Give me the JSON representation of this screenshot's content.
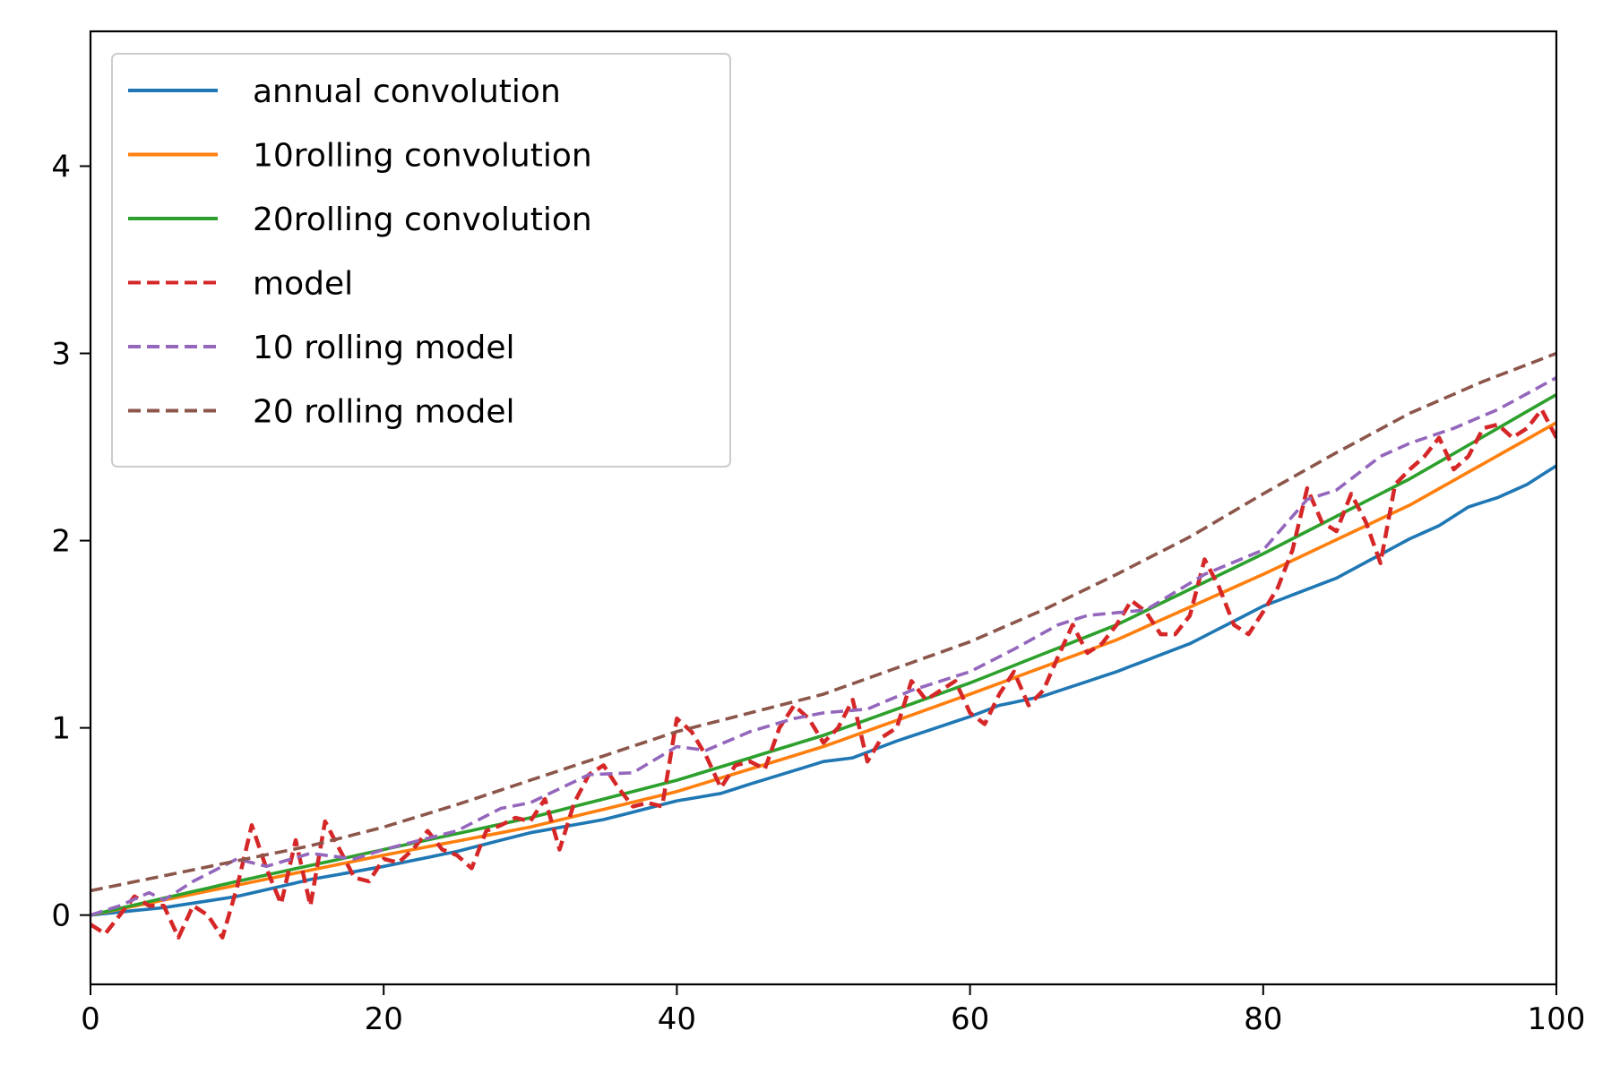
{
  "chart_data": {
    "type": "line",
    "title": "",
    "xlabel": "",
    "ylabel": "",
    "xlim": [
      0,
      100
    ],
    "ylim": [
      -0.37,
      4.72
    ],
    "xticks": [
      0,
      20,
      40,
      60,
      80,
      100
    ],
    "yticks": [
      0,
      1,
      2,
      3,
      4
    ],
    "grid": false,
    "legend_position": "upper-left",
    "x_step": 1,
    "series": [
      {
        "name": "annual convolution",
        "color": "#1f77b4",
        "style": "solid",
        "knots": [
          [
            0,
            0.0
          ],
          [
            5,
            0.04
          ],
          [
            10,
            0.1
          ],
          [
            15,
            0.19
          ],
          [
            20,
            0.26
          ],
          [
            25,
            0.34
          ],
          [
            30,
            0.44
          ],
          [
            35,
            0.51
          ],
          [
            40,
            0.61
          ],
          [
            43,
            0.65
          ],
          [
            45,
            0.7
          ],
          [
            50,
            0.82
          ],
          [
            52,
            0.84
          ],
          [
            55,
            0.93
          ],
          [
            60,
            1.06
          ],
          [
            62,
            1.12
          ],
          [
            65,
            1.17
          ],
          [
            70,
            1.3
          ],
          [
            75,
            1.45
          ],
          [
            80,
            1.65
          ],
          [
            85,
            1.8
          ],
          [
            90,
            2.01
          ],
          [
            92,
            2.08
          ],
          [
            94,
            2.18
          ],
          [
            96,
            2.23
          ],
          [
            98,
            2.3
          ],
          [
            100,
            2.4
          ]
        ]
      },
      {
        "name": "10rolling convolution",
        "color": "#ff7f0e",
        "style": "solid",
        "knots": [
          [
            0,
            0.0
          ],
          [
            10,
            0.16
          ],
          [
            20,
            0.32
          ],
          [
            30,
            0.47
          ],
          [
            40,
            0.66
          ],
          [
            50,
            0.9
          ],
          [
            60,
            1.18
          ],
          [
            70,
            1.47
          ],
          [
            80,
            1.82
          ],
          [
            90,
            2.19
          ],
          [
            100,
            2.63
          ]
        ]
      },
      {
        "name": "20rolling convolution",
        "color": "#2ca02c",
        "style": "solid",
        "knots": [
          [
            0,
            0.0
          ],
          [
            10,
            0.18
          ],
          [
            20,
            0.35
          ],
          [
            30,
            0.52
          ],
          [
            40,
            0.72
          ],
          [
            50,
            0.96
          ],
          [
            60,
            1.24
          ],
          [
            70,
            1.55
          ],
          [
            80,
            1.93
          ],
          [
            90,
            2.33
          ],
          [
            100,
            2.78
          ]
        ]
      },
      {
        "name": "model",
        "color": "#d62728",
        "style": "dashed",
        "values": [
          -0.05,
          -0.1,
          0.0,
          0.1,
          0.05,
          0.05,
          -0.12,
          0.05,
          0.0,
          -0.12,
          0.15,
          0.48,
          0.25,
          0.06,
          0.4,
          0.05,
          0.5,
          0.35,
          0.2,
          0.18,
          0.3,
          0.28,
          0.35,
          0.45,
          0.35,
          0.32,
          0.25,
          0.45,
          0.48,
          0.52,
          0.5,
          0.62,
          0.35,
          0.6,
          0.75,
          0.8,
          0.68,
          0.58,
          0.6,
          0.58,
          1.05,
          0.98,
          0.85,
          0.68,
          0.8,
          0.82,
          0.78,
          1.0,
          1.12,
          1.05,
          0.92,
          1.0,
          1.15,
          0.82,
          0.95,
          1.0,
          1.25,
          1.15,
          1.2,
          1.25,
          1.08,
          1.02,
          1.18,
          1.3,
          1.12,
          1.2,
          1.38,
          1.55,
          1.4,
          1.45,
          1.55,
          1.68,
          1.62,
          1.5,
          1.5,
          1.6,
          1.9,
          1.75,
          1.55,
          1.5,
          1.62,
          1.75,
          1.95,
          2.28,
          2.1,
          2.05,
          2.25,
          2.1,
          1.88,
          2.3,
          2.38,
          2.45,
          2.55,
          2.38,
          2.45,
          2.6,
          2.62,
          2.55,
          2.6,
          2.7,
          2.55
        ]
      },
      {
        "name": "10 rolling model",
        "color": "#9467bd",
        "style": "dashed",
        "knots": [
          [
            0,
            0.0
          ],
          [
            2,
            0.05
          ],
          [
            4,
            0.12
          ],
          [
            5,
            0.08
          ],
          [
            7,
            0.18
          ],
          [
            10,
            0.3
          ],
          [
            12,
            0.26
          ],
          [
            15,
            0.33
          ],
          [
            18,
            0.3
          ],
          [
            20,
            0.35
          ],
          [
            25,
            0.45
          ],
          [
            28,
            0.57
          ],
          [
            30,
            0.6
          ],
          [
            34,
            0.75
          ],
          [
            37,
            0.76
          ],
          [
            40,
            0.9
          ],
          [
            42,
            0.88
          ],
          [
            45,
            0.98
          ],
          [
            48,
            1.05
          ],
          [
            50,
            1.08
          ],
          [
            53,
            1.1
          ],
          [
            56,
            1.2
          ],
          [
            60,
            1.3
          ],
          [
            63,
            1.42
          ],
          [
            66,
            1.55
          ],
          [
            68,
            1.6
          ],
          [
            72,
            1.63
          ],
          [
            76,
            1.82
          ],
          [
            80,
            1.95
          ],
          [
            83,
            2.22
          ],
          [
            85,
            2.27
          ],
          [
            88,
            2.45
          ],
          [
            90,
            2.52
          ],
          [
            93,
            2.6
          ],
          [
            96,
            2.7
          ],
          [
            100,
            2.87
          ]
        ]
      },
      {
        "name": "20 rolling model",
        "color": "#8c564b",
        "style": "dashed",
        "knots": [
          [
            0,
            0.13
          ],
          [
            5,
            0.21
          ],
          [
            10,
            0.29
          ],
          [
            15,
            0.37
          ],
          [
            20,
            0.47
          ],
          [
            25,
            0.59
          ],
          [
            30,
            0.72
          ],
          [
            35,
            0.85
          ],
          [
            40,
            0.98
          ],
          [
            45,
            1.08
          ],
          [
            50,
            1.18
          ],
          [
            55,
            1.32
          ],
          [
            60,
            1.46
          ],
          [
            65,
            1.63
          ],
          [
            70,
            1.82
          ],
          [
            75,
            2.02
          ],
          [
            80,
            2.25
          ],
          [
            85,
            2.47
          ],
          [
            90,
            2.68
          ],
          [
            95,
            2.85
          ],
          [
            100,
            3.0
          ]
        ]
      }
    ]
  }
}
